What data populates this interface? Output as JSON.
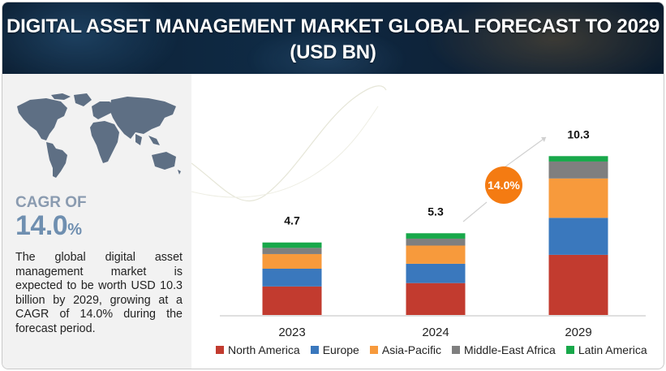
{
  "header": {
    "title_line1": "DIGITAL ASSET MANAGEMENT MARKET GLOBAL FORECAST TO 2029",
    "title_line2": "(USD BN)"
  },
  "left_panel": {
    "cagr_label": "CAGR OF",
    "cagr_number": "14.0",
    "cagr_percent": "%",
    "description": "The global digital asset management market is expected to be worth USD 10.3 billion by 2029, growing at a CAGR of 14.0% during the forecast period."
  },
  "growth_badge": "14.0%",
  "colors": {
    "north_america": "#c23b2f",
    "europe": "#3a78bd",
    "asia_pacific": "#f79a3c",
    "middle_east_africa": "#7f7f7f",
    "latin_america": "#18a84a",
    "badge": "#f47b12"
  },
  "chart_data": {
    "type": "bar",
    "stacked": true,
    "categories": [
      "2023",
      "2024",
      "2029"
    ],
    "totals": [
      4.7,
      5.3,
      10.3
    ],
    "total_labels": [
      "4.7",
      "5.3",
      "10.3"
    ],
    "series": [
      {
        "name": "North America",
        "values": [
          1.85,
          2.07,
          3.9
        ],
        "color": "#c23b2f"
      },
      {
        "name": "Europe",
        "values": [
          1.15,
          1.25,
          2.4
        ],
        "color": "#3a78bd"
      },
      {
        "name": "Asia-Pacific",
        "values": [
          0.95,
          1.18,
          2.55
        ],
        "color": "#f79a3c"
      },
      {
        "name": "Middle-East Africa",
        "values": [
          0.4,
          0.45,
          1.1
        ],
        "color": "#7f7f7f"
      },
      {
        "name": "Latin America",
        "values": [
          0.35,
          0.35,
          0.35
        ],
        "color": "#18a84a"
      }
    ],
    "ylim": [
      0,
      11
    ],
    "grid": false,
    "legend_position": "bottom"
  }
}
